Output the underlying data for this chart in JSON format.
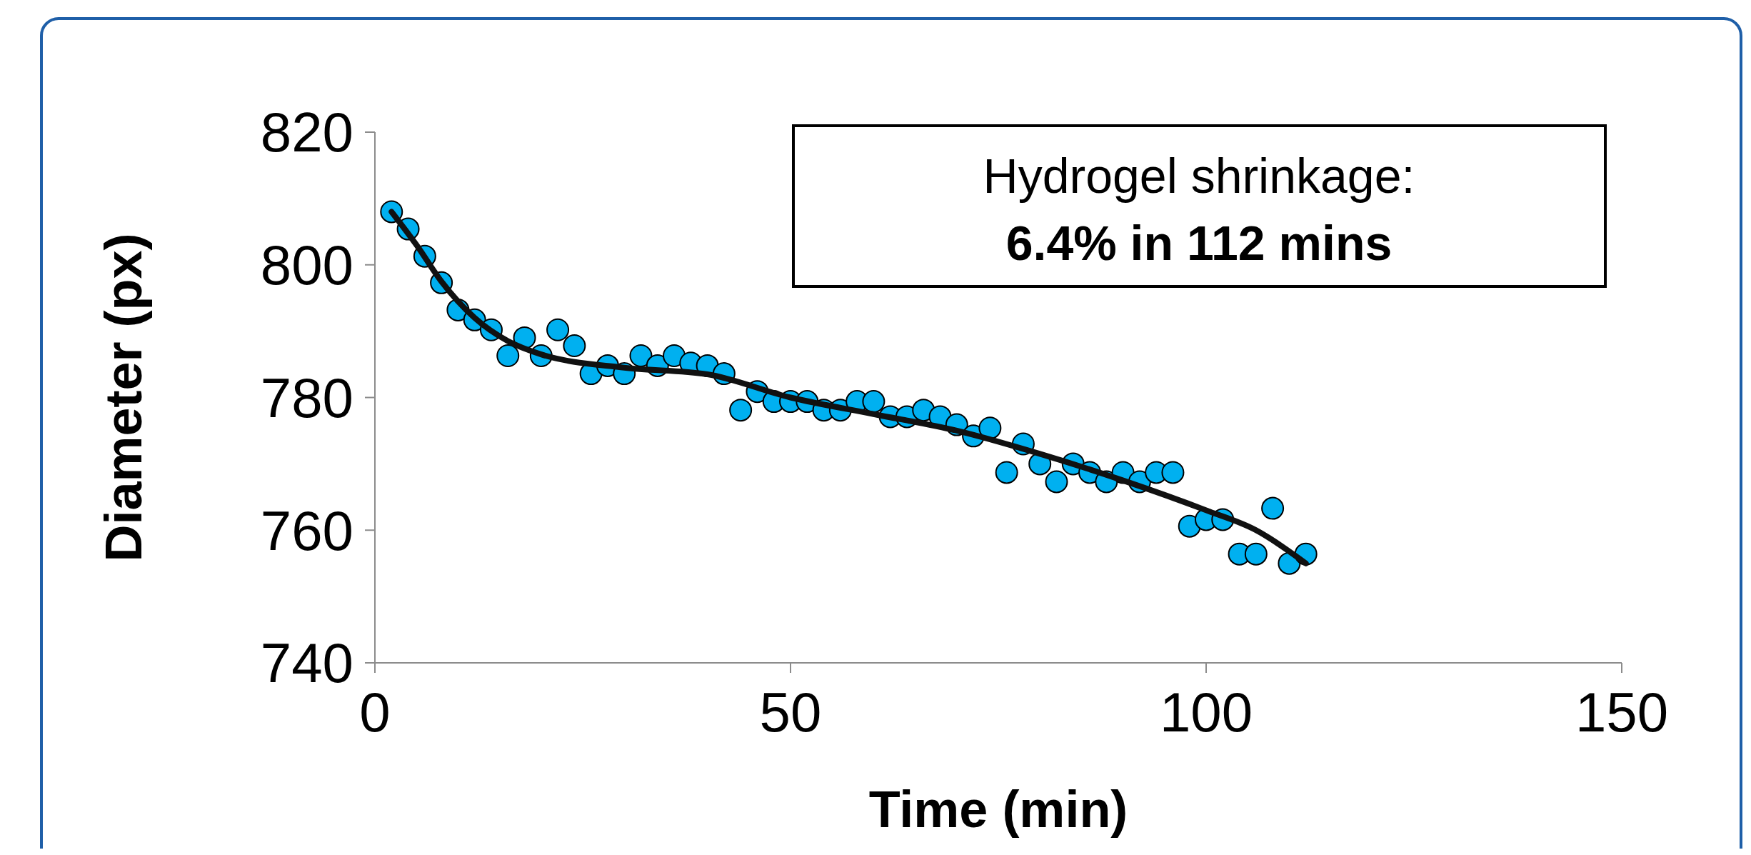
{
  "chart_data": {
    "type": "scatter",
    "xlabel": "Time (min)",
    "ylabel": "Diameter (px)",
    "annotations": [
      "Hydrogel shrinkage:",
      "6.4% in 112 mins"
    ],
    "xlim": [
      0,
      150
    ],
    "xticks": [
      0,
      50,
      100,
      150
    ],
    "ylim": [
      740,
      820
    ],
    "yticks": [
      740,
      760,
      780,
      800,
      820
    ],
    "grid": false,
    "marker": "circle",
    "x": [
      2,
      4,
      6,
      8,
      10,
      12,
      14,
      16,
      18,
      20,
      22,
      24,
      26,
      28,
      30,
      32,
      34,
      36,
      38,
      40,
      42,
      44,
      46,
      48,
      50,
      52,
      54,
      56,
      58,
      60,
      62,
      64,
      66,
      68,
      70,
      72,
      74,
      76,
      78,
      80,
      82,
      84,
      86,
      88,
      90,
      92,
      94,
      96,
      98,
      100,
      102,
      104,
      106,
      108,
      110,
      112
    ],
    "series": [
      {
        "color": "#00b0f0",
        "values": [
          808,
          805.4,
          801.3,
          797.3,
          793.2,
          791.7,
          790.2,
          786.3,
          789,
          786.3,
          790.2,
          787.8,
          783.6,
          784.8,
          783.6,
          786.3,
          784.8,
          786.3,
          785.2,
          784.8,
          783.6,
          778.1,
          780.9,
          779.4,
          779.4,
          779.4,
          778.1,
          778.1,
          779.4,
          779.4,
          777.1,
          777.1,
          778.1,
          777.1,
          775.9,
          774.2,
          775.4,
          768.7,
          773,
          770,
          767.3,
          770,
          768.7,
          767.3,
          768.7,
          767.3,
          768.7,
          768.7,
          760.6,
          761.6,
          761.6,
          756.4,
          756.4,
          763.3,
          755,
          756.4
        ]
      },
      {
        "type": "line",
        "color": "#111111",
        "marker": "none",
        "x": [
          2,
          5,
          8,
          12,
          16,
          20,
          30,
          40,
          50,
          60,
          70,
          80,
          90,
          100,
          106,
          112
        ],
        "values": [
          808,
          803,
          797.5,
          792,
          788.5,
          786.5,
          784.5,
          783.5,
          780,
          777.5,
          775,
          771.5,
          767.5,
          763,
          760,
          755
        ]
      }
    ]
  }
}
